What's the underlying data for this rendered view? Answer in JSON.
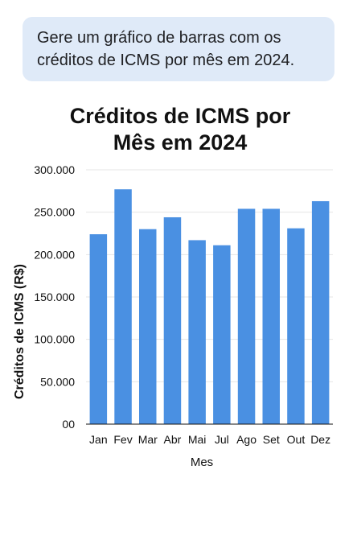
{
  "prompt": {
    "text_line1": "Gere um gráfico de barras com os",
    "text_line2": "créditos de ICMS por mês em 2024."
  },
  "chart_data": {
    "type": "bar",
    "title_lines": [
      "Créditos de ICMS por",
      "Mês em 2024"
    ],
    "xlabel": "Mes",
    "ylabel": "Créditos de ICMS (R$)",
    "categories": [
      "Jan",
      "Fev",
      "Mar",
      "Abr",
      "Mai",
      "Jul",
      "Ago",
      "Set",
      "Out",
      "Dez"
    ],
    "values": [
      224000,
      277000,
      230000,
      244000,
      217000,
      211000,
      254000,
      254000,
      231000,
      263000
    ],
    "ylim": [
      0,
      300000
    ],
    "yticks": [
      0,
      50000,
      100000,
      150000,
      200000,
      250000,
      300000
    ],
    "ytick_labels": [
      "00",
      "50.000",
      "100.000",
      "150.000",
      "200.000",
      "250.000",
      "300.000"
    ],
    "grid": true,
    "bar_color": "#4a90e2"
  }
}
